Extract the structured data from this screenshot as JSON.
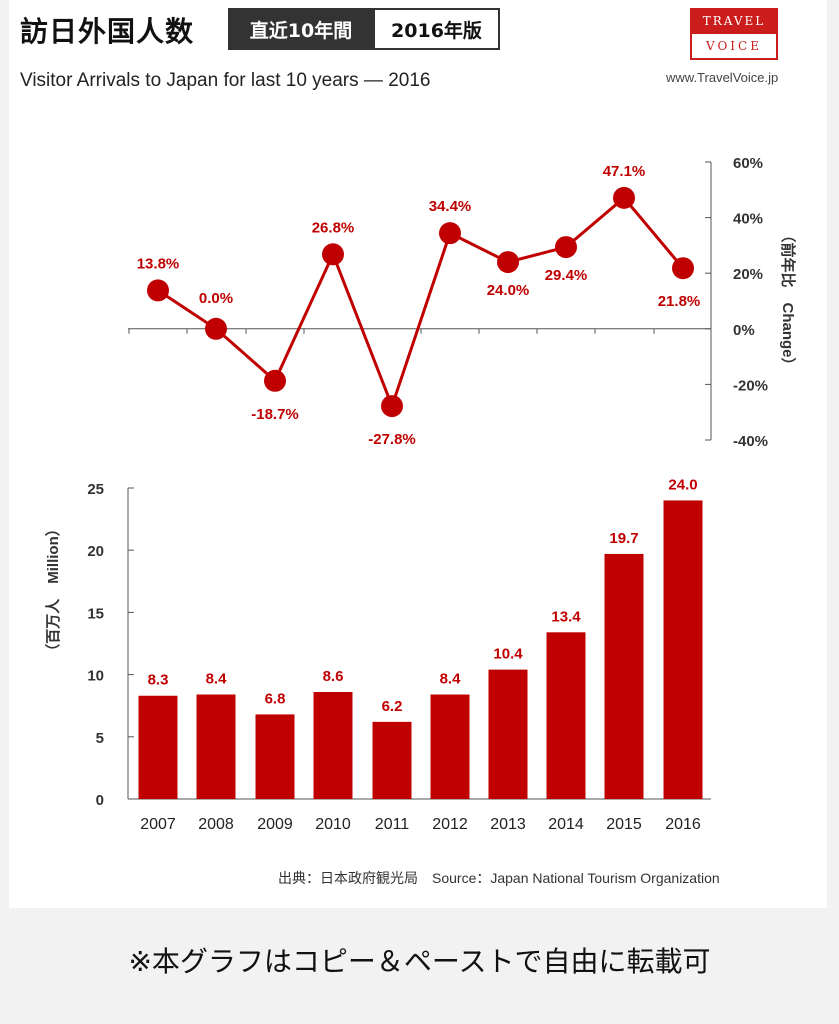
{
  "header": {
    "title_jp": "訪日外国人数",
    "tag_period": "直近10年間",
    "tag_edition": "2016年版",
    "subtitle": "Visitor Arrivals to Japan for last 10 years — 2016",
    "logo_top": "TRAVEL",
    "logo_bottom": "VOICE",
    "site_url": "www.TravelVoice.jp"
  },
  "source_text": "出典：日本政府観光局　Source：Japan  National Tourism  Organization",
  "footer_note": "※本グラフはコピー＆ペーストで自由に転載可",
  "colors": {
    "accent": "#c00000",
    "brand": "#cc1d1d"
  },
  "chart_data": [
    {
      "type": "line",
      "x": [
        "2007",
        "2008",
        "2009",
        "2010",
        "2011",
        "2012",
        "2013",
        "2014",
        "2015",
        "2016"
      ],
      "values": [
        13.8,
        0.0,
        -18.7,
        26.8,
        -27.8,
        34.4,
        24.0,
        29.4,
        47.1,
        21.8
      ],
      "data_labels": [
        "13.8%",
        "0.0%",
        "-18.7%",
        "26.8%",
        "-27.8%",
        "34.4%",
        "24.0%",
        "29.4%",
        "47.1%",
        "21.8%"
      ],
      "ylim": [
        -40,
        60
      ],
      "yticks": [
        60,
        40,
        20,
        0,
        -20,
        -40
      ],
      "ytick_labels": [
        "60%",
        "40%",
        "20%",
        "0%",
        "-20%",
        "-40%"
      ],
      "ylabel": "（前年比　Change）",
      "grid": false
    },
    {
      "type": "bar",
      "categories": [
        "2007",
        "2008",
        "2009",
        "2010",
        "2011",
        "2012",
        "2013",
        "2014",
        "2015",
        "2016"
      ],
      "values": [
        8.3,
        8.4,
        6.8,
        8.6,
        6.2,
        8.4,
        10.4,
        13.4,
        19.7,
        24.0
      ],
      "data_labels": [
        "8.3",
        "8.4",
        "6.8",
        "8.6",
        "6.2",
        "8.4",
        "10.4",
        "13.4",
        "19.7",
        "24.0"
      ],
      "ylim": [
        0,
        25
      ],
      "yticks": [
        25,
        20,
        15,
        10,
        5,
        0
      ],
      "ytick_labels": [
        "25",
        "20",
        "15",
        "10",
        "5",
        "0"
      ],
      "ylabel": "（百万人　Million）",
      "grid": false
    }
  ]
}
